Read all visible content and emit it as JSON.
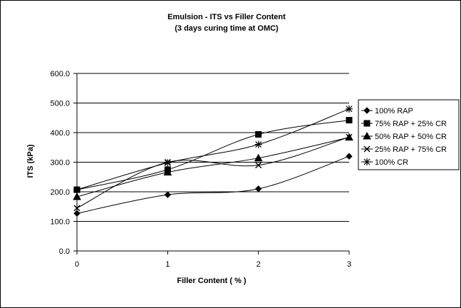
{
  "chart_data": {
    "type": "line",
    "title": "Emulsion - ITS vs Filler Content",
    "subtitle": "(3 days curing time at OMC)",
    "xlabel": "Filler Content ( % )",
    "ylabel": "ITS (kPa)",
    "x": [
      0,
      1,
      2,
      3
    ],
    "x_ticks": [
      "0",
      "1",
      "2",
      "3"
    ],
    "y_ticks": [
      "0.0",
      "100.0",
      "200.0",
      "300.0",
      "400.0",
      "500.0",
      "600.0"
    ],
    "ylim": [
      0,
      600
    ],
    "grid": "horizontal",
    "legend_placement": "right",
    "series": [
      {
        "name": "100% RAP",
        "values": [
          127,
          190,
          210,
          320
        ],
        "marker": "diamond",
        "color": "#000000"
      },
      {
        "name": "75% RAP + 25% CR",
        "values": [
          207,
          275,
          394,
          442
        ],
        "marker": "square",
        "color": "#000000"
      },
      {
        "name": "50% RAP + 50% CR",
        "values": [
          183,
          266,
          314,
          384
        ],
        "marker": "triangle",
        "color": "#000000"
      },
      {
        "name": "25% RAP + 75% CR",
        "values": [
          145,
          300,
          290,
          385
        ],
        "marker": "x",
        "color": "#000000"
      },
      {
        "name": "100% CR",
        "values": [
          207,
          298,
          360,
          480
        ],
        "marker": "star",
        "color": "#000000"
      }
    ]
  }
}
